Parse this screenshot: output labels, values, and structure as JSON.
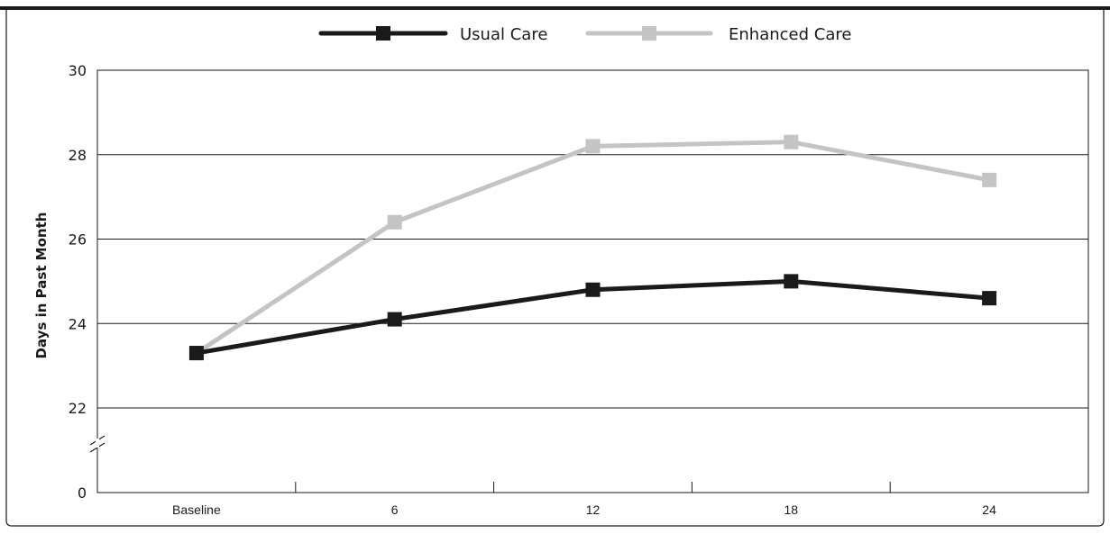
{
  "chart_data": {
    "type": "line",
    "title": "",
    "xlabel": "",
    "ylabel": "Days in Past Month",
    "categories": [
      "Baseline",
      "6",
      "12",
      "18",
      "24"
    ],
    "ylim": [
      22,
      30
    ],
    "y_ticks": [
      "0",
      "22",
      "24",
      "26",
      "28",
      "30"
    ],
    "y_axis_break": true,
    "grid": "horizontal",
    "legend_position": "top",
    "series": [
      {
        "name": "Usual Care",
        "color": "#1a1a1a",
        "values": [
          23.3,
          24.1,
          24.8,
          25.0,
          24.6
        ]
      },
      {
        "name": "Enhanced Care",
        "color": "#c4c4c4",
        "values": [
          23.3,
          26.4,
          28.2,
          28.3,
          27.4
        ]
      }
    ]
  }
}
